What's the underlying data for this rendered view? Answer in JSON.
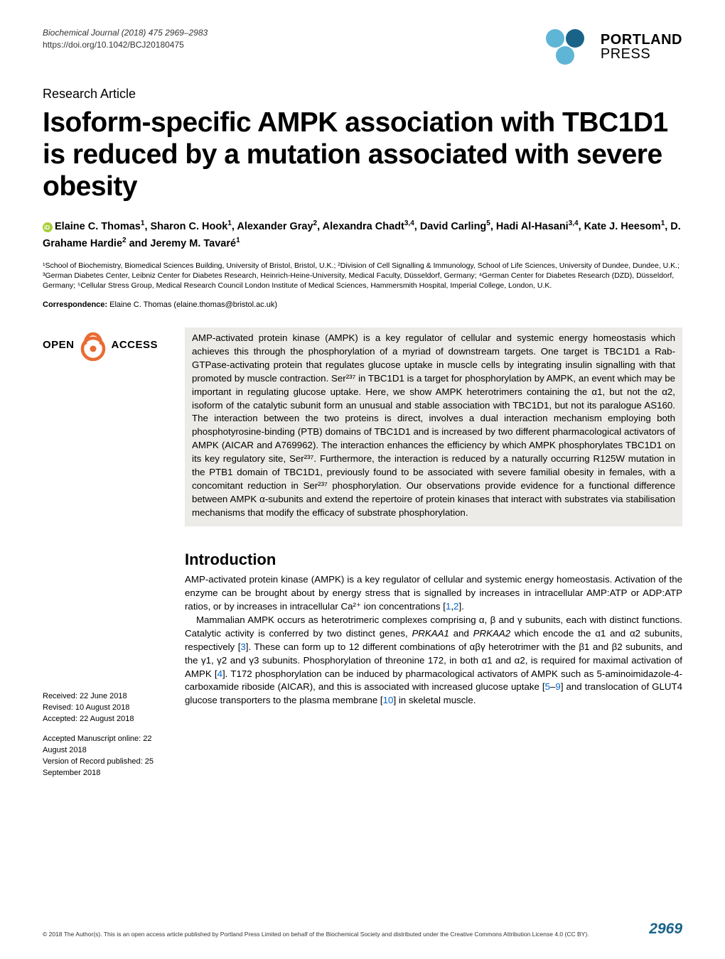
{
  "journal": {
    "citation": "Biochemical Journal (2018) 475 2969–2983",
    "doi": "https://doi.org/10.1042/BCJ20180475"
  },
  "publisher": {
    "name_line1": "PORTLAND",
    "name_line2": "PRESS",
    "logo_colors": {
      "hex_light": "#5fb5d6",
      "hex_dark": "#1a6388"
    }
  },
  "article_type": "Research Article",
  "title": "Isoform-specific AMPK association with TBC1D1 is reduced by a mutation associated with severe obesity",
  "authors_html": "Elaine C. Thomas<sup>1</sup>, Sharon C. Hook<sup>1</sup>, Alexander Gray<sup>2</sup>, Alexandra Chadt<sup>3,4</sup>, David Carling<sup>5</sup>, Hadi Al-Hasani<sup>3,4</sup>, Kate J. Heesom<sup>1</sup>, D. Grahame Hardie<sup>2</sup> and Jeremy M. Tavaré<sup>1</sup>",
  "affiliations": "¹School of Biochemistry, Biomedical Sciences Building, University of Bristol, Bristol, U.K.; ²Division of Cell Signalling & Immunology, School of Life Sciences, University of Dundee, Dundee, U.K.; ³German Diabetes Center, Leibniz Center for Diabetes Research, Heinrich-Heine-University, Medical Faculty, Düsseldorf, Germany; ⁴German Center for Diabetes Research (DZD), Düsseldorf, Germany; ⁵Cellular Stress Group, Medical Research Council London Institute of Medical Sciences, Hammersmith Hospital, Imperial College, London, U.K.",
  "correspondence": {
    "label": "Correspondence:",
    "text": " Elaine C. Thomas (elaine.thomas@bristol.ac.uk)"
  },
  "open_access": {
    "left": "OPEN",
    "right": "ACCESS",
    "lock_color": "#e86c33"
  },
  "abstract": "AMP-activated protein kinase (AMPK) is a key regulator of cellular and systemic energy homeostasis which achieves this through the phosphorylation of a myriad of downstream targets. One target is TBC1D1 a Rab-GTPase-activating protein that regulates glucose uptake in muscle cells by integrating insulin signalling with that promoted by muscle contraction. Ser²³⁷ in TBC1D1 is a target for phosphorylation by AMPK, an event which may be important in regulating glucose uptake. Here, we show AMPK heterotrimers containing the α1, but not the α2, isoform of the catalytic subunit form an unusual and stable association with TBC1D1, but not its paralogue AS160. The interaction between the two proteins is direct, involves a dual interaction mechanism employing both phosphotyrosine-binding (PTB) domains of TBC1D1 and is increased by two different pharmacological activators of AMPK (AICAR and A769962). The interaction enhances the efficiency by which AMPK phosphorylates TBC1D1 on its key regulatory site, Ser²³⁷. Furthermore, the interaction is reduced by a naturally occurring R125W mutation in the PTB1 domain of TBC1D1, previously found to be associated with severe familial obesity in females, with a concomitant reduction in Ser²³⁷ phosphorylation. Our observations provide evidence for a functional difference between AMPK α-subunits and extend the repertoire of protein kinases that interact with substrates via stabilisation mechanisms that modify the efficacy of substrate phosphorylation.",
  "introduction": {
    "heading": "Introduction",
    "para1_pre": "AMP-activated protein kinase (AMPK) is a key regulator of cellular and systemic energy homeostasis. Activation of the enzyme can be brought about by energy stress that is signalled by increases in intracellular AMP:ATP or ADP:ATP ratios, or by increases in intracellular Ca²⁺ ion concentrations [",
    "ref1": "1",
    "comma12": ",",
    "ref2": "2",
    "para1_post": "].",
    "para2_a": "Mammalian AMPK occurs as heterotrimeric complexes comprising α, β and γ subunits, each with distinct functions. Catalytic activity is conferred by two distinct genes, ",
    "gene1": "PRKAA1",
    "para2_b": " and ",
    "gene2": "PRKAA2",
    "para2_c": " which encode the α1 and α2 subunits, respectively [",
    "ref3": "3",
    "para2_d": "]. These can form up to 12 different combinations of αβγ heterotrimer with the β1 and β2 subunits, and the γ1, γ2 and γ3 subunits. Phosphorylation of threonine 172, in both α1 and α2, is required for maximal activation of AMPK [",
    "ref4": "4",
    "para2_e": "]. T172 phosphorylation can be induced by pharmacological activators of AMPK such as 5-aminoimidazole-4-carboxamide riboside (AICAR), and this is associated with increased glucose uptake [",
    "ref5": "5",
    "dash59": "–",
    "ref9": "9",
    "para2_f": "] and translocation of GLUT4 glucose transporters to the plasma membrane [",
    "ref10": "10",
    "para2_g": "] in skeletal muscle."
  },
  "dates": {
    "received": "Received: 22 June 2018",
    "revised": "Revised: 10 August 2018",
    "accepted": "Accepted: 22 August 2018",
    "accepted_ms": "Accepted Manuscript online: 22 August 2018",
    "version": "Version of Record published: 25 September 2018"
  },
  "footer": {
    "copyright": "© 2018 The Author(s). This is an open access article published by Portland Press Limited on behalf of the Biochemical Society and distributed under the Creative Commons Attribution License 4.0 (CC BY).",
    "page_number": "2969"
  },
  "colors": {
    "background": "#ffffff",
    "text": "#000000",
    "abstract_bg": "#ecebe7",
    "link": "#0066cc",
    "pagenum": "#1a6388"
  }
}
